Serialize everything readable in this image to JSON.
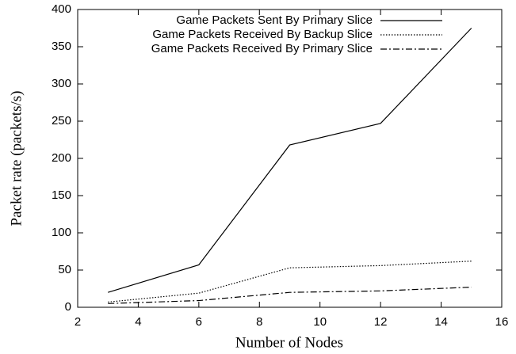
{
  "chart_data": {
    "type": "line",
    "x_label": "Number of Nodes",
    "y_label": "Packet rate (packets/s)",
    "x": [
      3,
      6,
      9,
      12,
      15
    ],
    "series": [
      {
        "name": "Game Packets Sent By Primary Slice",
        "color": "#000000",
        "style": "solid",
        "values": [
          20,
          57,
          218,
          247,
          375
        ]
      },
      {
        "name": "Game Packets Received By Backup Slice",
        "color": "#000000",
        "style": "dotted",
        "values": [
          7,
          19,
          53,
          56,
          62
        ]
      },
      {
        "name": "Game Packets Received By Primary Slice",
        "color": "#000000",
        "style": "dashdot",
        "values": [
          5,
          9,
          20,
          22,
          27
        ]
      }
    ],
    "xlim": [
      2,
      16
    ],
    "xticks": [
      2,
      4,
      6,
      8,
      10,
      12,
      14,
      16
    ],
    "ylim": [
      0,
      400
    ],
    "yticks": [
      0,
      50,
      100,
      150,
      200,
      250,
      300,
      350,
      400
    ],
    "grid": false,
    "legend": "upper right"
  }
}
